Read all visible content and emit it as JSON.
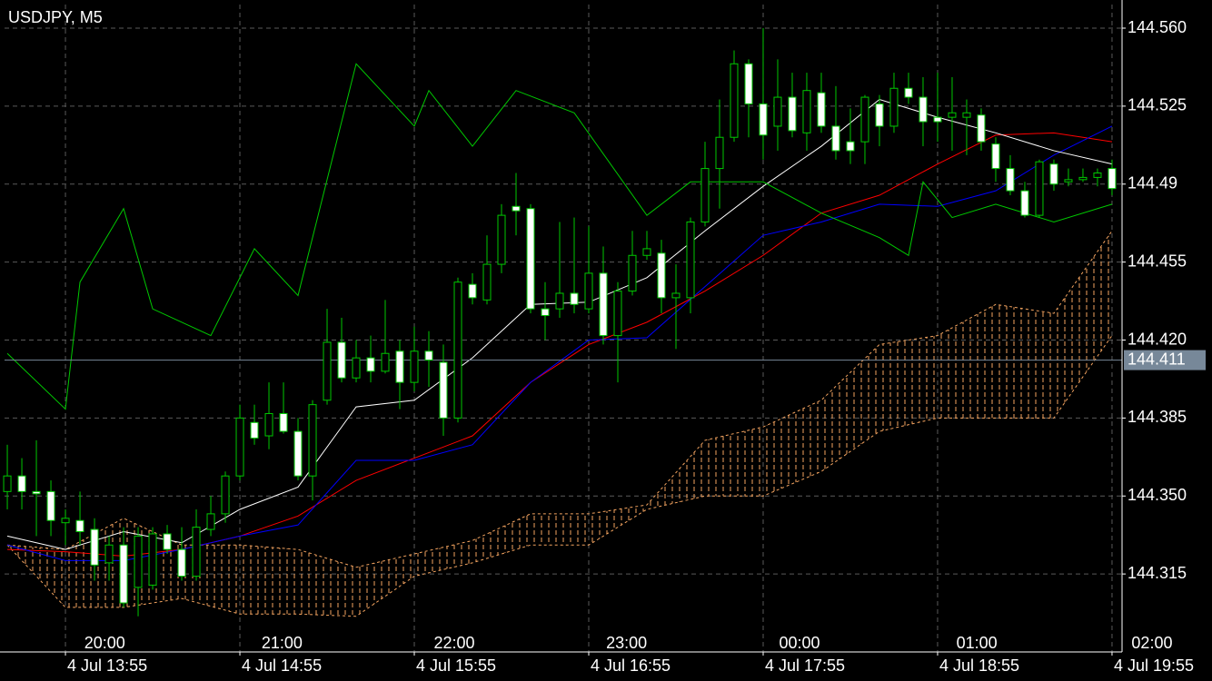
{
  "chart_data": {
    "type": "candlestick",
    "title": "USDJPY, M5",
    "x": [
      0,
      1,
      2,
      3,
      4,
      5,
      6,
      7,
      8,
      9,
      10,
      11,
      12,
      13,
      14,
      15,
      16,
      17,
      18,
      19,
      20,
      21,
      22,
      23,
      24,
      25,
      26,
      27,
      28,
      29,
      30,
      31,
      32,
      33,
      34,
      35,
      36,
      37,
      38,
      39,
      40,
      41,
      42,
      43,
      44,
      45,
      46,
      47,
      48,
      49,
      50,
      51,
      52,
      53,
      54,
      55,
      56,
      57,
      58,
      59,
      60,
      61,
      62,
      63,
      64,
      65,
      66,
      67,
      68,
      69,
      70,
      71,
      72,
      73,
      74,
      75,
      76
    ],
    "open": [
      144.352,
      144.359,
      144.352,
      144.352,
      144.338,
      144.339,
      144.335,
      144.32,
      144.328,
      144.309,
      144.31,
      144.333,
      144.326,
      144.314,
      144.335,
      144.342,
      144.359,
      144.383,
      144.377,
      144.387,
      144.379,
      144.359,
      144.393,
      144.419,
      144.403,
      144.412,
      144.406,
      144.415,
      144.401,
      144.415,
      144.41,
      144.385,
      144.445,
      144.438,
      144.454,
      144.48,
      144.479,
      144.434,
      144.434,
      144.441,
      144.434,
      144.45,
      144.422,
      144.442,
      144.458,
      144.459,
      144.439,
      144.439,
      144.473,
      144.497,
      144.511,
      144.544,
      144.526,
      144.516,
      144.529,
      144.513,
      144.531,
      144.516,
      144.509,
      144.509,
      144.526,
      144.516,
      144.533,
      144.529,
      144.52,
      144.52,
      144.52,
      144.521,
      144.508,
      144.497,
      144.487,
      144.476,
      144.499,
      144.491,
      144.492,
      144.493,
      144.497
    ],
    "high": [
      144.373,
      144.367,
      144.375,
      144.357,
      144.344,
      144.352,
      144.34,
      144.332,
      144.336,
      144.336,
      144.336,
      144.337,
      144.336,
      144.344,
      144.35,
      144.361,
      144.391,
      144.391,
      144.401,
      144.401,
      144.385,
      144.393,
      144.434,
      144.43,
      144.42,
      144.422,
      144.438,
      144.42,
      144.426,
      144.424,
      144.418,
      144.448,
      144.45,
      144.467,
      144.481,
      144.495,
      144.481,
      144.446,
      144.473,
      144.475,
      144.471,
      144.462,
      144.446,
      144.469,
      144.469,
      144.465,
      144.454,
      144.475,
      144.509,
      144.528,
      144.55,
      144.546,
      144.56,
      144.546,
      144.54,
      144.54,
      144.54,
      144.534,
      144.524,
      144.53,
      144.53,
      144.54,
      144.54,
      144.538,
      144.54,
      144.538,
      144.528,
      144.524,
      144.511,
      144.503,
      144.491,
      144.501,
      144.501,
      144.497,
      144.497,
      144.497,
      144.501
    ],
    "low": [
      144.344,
      144.344,
      144.332,
      144.332,
      144.328,
      144.328,
      144.312,
      144.312,
      144.3,
      144.296,
      144.308,
      144.324,
      144.312,
      144.312,
      144.332,
      144.338,
      144.357,
      144.373,
      144.371,
      144.378,
      144.357,
      144.348,
      144.391,
      144.401,
      144.401,
      144.401,
      144.405,
      144.389,
      144.397,
      144.399,
      144.377,
      144.383,
      144.436,
      144.436,
      144.45,
      144.467,
      144.432,
      144.42,
      144.43,
      144.432,
      144.432,
      144.418,
      144.401,
      144.44,
      144.456,
      144.432,
      144.416,
      144.432,
      144.471,
      144.479,
      144.509,
      144.511,
      144.501,
      144.505,
      144.511,
      144.505,
      144.513,
      144.501,
      144.499,
      144.499,
      144.507,
      144.513,
      144.526,
      144.507,
      144.509,
      144.505,
      144.503,
      144.505,
      144.491,
      144.485,
      144.475,
      144.475,
      144.487,
      144.489,
      144.491,
      144.489,
      144.485
    ],
    "close": [
      144.359,
      144.352,
      144.351,
      144.339,
      144.34,
      144.334,
      144.319,
      144.328,
      144.302,
      144.332,
      144.333,
      144.326,
      144.314,
      144.336,
      144.342,
      144.359,
      144.385,
      144.376,
      144.387,
      144.379,
      144.359,
      144.391,
      144.419,
      144.403,
      144.412,
      144.406,
      144.414,
      144.401,
      144.415,
      144.411,
      144.385,
      144.446,
      144.439,
      144.454,
      144.476,
      144.478,
      144.434,
      144.431,
      144.441,
      144.436,
      144.45,
      144.422,
      144.442,
      144.458,
      144.461,
      144.439,
      144.441,
      144.473,
      144.497,
      144.511,
      144.544,
      144.526,
      144.512,
      144.529,
      144.514,
      144.532,
      144.516,
      144.505,
      144.505,
      144.529,
      144.516,
      144.533,
      144.529,
      144.518,
      144.518,
      144.522,
      144.522,
      144.509,
      144.497,
      144.487,
      144.476,
      144.5,
      144.49,
      144.492,
      144.493,
      144.495,
      144.488
    ],
    "up_color": "#000000",
    "down_color": "#ffffff",
    "wick_color": "#00c800",
    "series": [
      {
        "color": "#ff0000",
        "x": [
          0,
          4,
          8,
          12,
          16,
          20,
          24,
          28,
          32,
          36,
          40,
          44,
          48,
          52,
          56,
          60,
          64,
          68,
          72,
          76
        ],
        "values": [
          144.326,
          144.325,
          144.323,
          144.326,
          144.332,
          144.341,
          144.357,
          144.367,
          144.377,
          144.401,
          144.418,
          144.428,
          144.442,
          144.458,
          144.477,
          144.485,
          144.499,
          144.512,
          144.513,
          144.509
        ]
      },
      {
        "color": "#0000ff",
        "x": [
          0,
          4,
          8,
          12,
          16,
          20,
          24,
          28,
          32,
          36,
          40,
          44,
          48,
          52,
          56,
          60,
          64,
          68,
          72,
          76
        ],
        "values": [
          144.328,
          144.321,
          144.321,
          144.326,
          144.332,
          144.337,
          144.366,
          144.366,
          144.373,
          144.401,
          144.42,
          144.421,
          144.444,
          144.467,
          144.473,
          144.481,
          144.48,
          144.487,
          144.503,
          144.516
        ]
      },
      {
        "color": "#ffffff",
        "x": [
          0,
          4,
          8,
          12,
          16,
          20,
          24,
          28,
          32,
          36,
          40,
          44,
          48,
          52,
          56,
          60,
          64,
          68,
          72,
          76
        ],
        "values": [
          144.332,
          144.326,
          144.334,
          144.329,
          144.344,
          144.354,
          144.39,
          144.393,
          144.412,
          144.436,
          144.437,
          144.448,
          144.469,
          144.489,
          144.507,
          144.528,
          144.52,
          144.513,
          144.505,
          144.499
        ]
      },
      {
        "color": "#00c800",
        "x": [
          0,
          4,
          5,
          8,
          10,
          14,
          17,
          20,
          24,
          28,
          29,
          32,
          35,
          39,
          44,
          47,
          52,
          56,
          60,
          62,
          63,
          65,
          68,
          72,
          76
        ],
        "values": [
          144.414,
          144.389,
          144.446,
          144.479,
          144.434,
          144.422,
          144.461,
          144.44,
          144.544,
          144.516,
          144.532,
          144.507,
          144.532,
          144.522,
          144.476,
          144.491,
          144.491,
          144.477,
          144.466,
          144.458,
          144.491,
          144.475,
          144.481,
          144.473,
          144.481
        ]
      }
    ],
    "cloud": {
      "color": "#f4a460",
      "x": [
        0,
        4,
        8,
        12,
        16,
        20,
        24,
        28,
        32,
        36,
        40,
        44,
        48,
        52,
        56,
        60,
        64,
        68,
        72,
        76
      ],
      "span_a": [
        144.328,
        144.326,
        144.34,
        144.328,
        144.328,
        144.326,
        144.318,
        144.324,
        144.33,
        144.342,
        144.342,
        144.346,
        144.375,
        144.381,
        144.393,
        144.418,
        144.422,
        144.436,
        144.432,
        144.469
      ],
      "span_b": [
        144.328,
        144.3,
        144.3,
        144.304,
        144.297,
        144.297,
        144.296,
        144.314,
        144.32,
        144.328,
        144.328,
        144.344,
        144.35,
        144.35,
        144.361,
        144.379,
        144.385,
        144.385,
        144.385,
        144.422
      ]
    },
    "bid": 144.411,
    "bid_color": "#778899",
    "xlim": [
      -0.19,
      76.69
    ],
    "ylim": [
      144.28,
      144.5706
    ],
    "yticks": [
      {
        "value": 144.56,
        "label": "144.560"
      },
      144.525,
      144.49,
      144.455,
      {
        "value": 144.42,
        "label": "144.420"
      },
      144.385,
      {
        "value": 144.35,
        "label": "144.350"
      },
      144.315
    ],
    "xticks": [
      {
        "value": 4,
        "label": "4 Jul 13:55"
      },
      {
        "value": 16,
        "label": "4 Jul 14:55"
      },
      {
        "value": 28,
        "label": "4 Jul 15:55"
      },
      {
        "value": 40,
        "label": "4 Jul 16:55"
      },
      {
        "value": 52,
        "label": "4 Jul 17:55"
      },
      {
        "value": 64,
        "label": "4 Jul 18:55"
      },
      {
        "value": 76,
        "label": "4 Jul 19:55"
      }
    ],
    "x2ticks": [
      {
        "value": 6.7,
        "label": "20:00"
      },
      {
        "value": 18.9,
        "label": "21:00"
      },
      {
        "value": 30.75,
        "label": "22:00"
      },
      {
        "value": 42.6,
        "label": "23:00"
      },
      {
        "value": 54.5,
        "label": "00:00"
      },
      {
        "value": 66.7,
        "label": "01:00"
      },
      {
        "value": 78.75,
        "label": "02:00"
      }
    ],
    "grid": true
  }
}
